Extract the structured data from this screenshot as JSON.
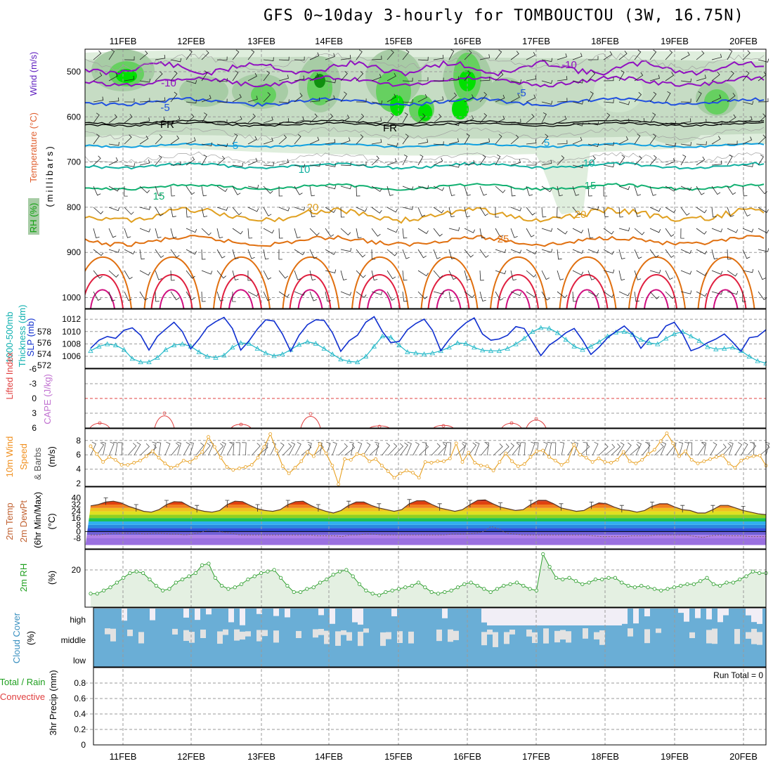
{
  "title": "GFS 0~10day 3-hourly for TOMBOUCTOU (3W, 16.75N)",
  "dates": [
    "11FEB",
    "12FEB",
    "13FEB",
    "14FEB",
    "15FEB",
    "16FEB",
    "17FEB",
    "18FEB",
    "19FEB",
    "20FEB"
  ],
  "colors": {
    "rh_light": "#dfeedd",
    "rh_mid": "#a7cca5",
    "rh_green": "#66d060",
    "rh_bright": "#00e000",
    "wind_purple": "#9010c0",
    "temp_blue": "#2050e0",
    "temp_cyan": "#10a0e0",
    "temp_teal": "#10b0a0",
    "temp_green": "#10b070",
    "temp_orange": "#e0a020",
    "temp_dark_orange": "#e07010",
    "temp_red": "#e02040",
    "slp_blue": "#1030d0",
    "thick_cyan": "#20b8c8",
    "wind10": "#e8a020",
    "rh2m": "#30a030",
    "cloud": "#6aaed6"
  },
  "panels": {
    "upper": {
      "ylabel_parts": [
        "RH (%)",
        "Temperature (°C)",
        "Wind (m/s)",
        "(millibars)"
      ],
      "yticks": [
        "500",
        "600",
        "700",
        "800",
        "900",
        "1000"
      ],
      "contour_labels": [
        {
          "text": "-10",
          "series": "wind_purple"
        },
        {
          "text": "-10",
          "series": "wind_purple"
        },
        {
          "text": "-5",
          "series": "temp_blue"
        },
        {
          "text": "-5",
          "series": "temp_blue"
        },
        {
          "text": "FR",
          "series": "black"
        },
        {
          "text": "FR",
          "series": "black"
        },
        {
          "text": "5",
          "series": "temp_cyan"
        },
        {
          "text": "5",
          "series": "temp_cyan"
        },
        {
          "text": "10",
          "series": "temp_teal"
        },
        {
          "text": "10",
          "series": "temp_teal"
        },
        {
          "text": "15",
          "series": "temp_green"
        },
        {
          "text": "15",
          "series": "temp_green"
        },
        {
          "text": "20",
          "series": "temp_orange"
        },
        {
          "text": "20",
          "series": "temp_orange"
        },
        {
          "text": "25",
          "series": "temp_dark_orange"
        }
      ]
    },
    "slp": {
      "ylabel_left": "Thickness (dm)",
      "ylabel_left2": "1000-500mb",
      "ylabel_right": "SLP (mb)",
      "thickness_ticks": [
        "572",
        "574",
        "576",
        "578"
      ],
      "slp_ticks": [
        "1006",
        "1008",
        "1010",
        "1012"
      ]
    },
    "cape": {
      "ylabel_a": "Lifted Index",
      "ylabel_b": "CAPE (J/kg)",
      "yticks": [
        "-6",
        "-3",
        "0",
        "3",
        "6"
      ]
    },
    "wind10": {
      "ylabel_a": "10m Wind",
      "ylabel_b": "Speed",
      "ylabel_c": "& Barbs",
      "ylabel_d": "(m/s)",
      "yticks": [
        "2",
        "4",
        "6",
        "8"
      ]
    },
    "temp2m": {
      "ylabel_a": "2m Temp",
      "ylabel_b": "2m DewPt",
      "ylabel_c": "(6hr Min/Max)",
      "ylabel_d": "(°C)",
      "yticks": [
        "-8",
        "0",
        "8",
        "16",
        "24",
        "32",
        "40"
      ]
    },
    "rh2m": {
      "ylabel_a": "2m RH",
      "ylabel_b": "(%)",
      "yticks": [
        "20"
      ]
    },
    "cloud": {
      "ylabel_a": "Cloud Cover",
      "ylabel_b": "(%)",
      "levels": [
        "high",
        "middle",
        "low"
      ]
    },
    "precip": {
      "ylabel_a": "Total / Rain",
      "ylabel_b": "Convective",
      "ylabel_c": "3hr Precip (mm)",
      "yticks": [
        "0",
        "0.2",
        "0.4",
        "0.6",
        "0.8"
      ],
      "run_total": "Run Total = 0"
    }
  },
  "chart_data": [
    {
      "type": "line",
      "title": "GFS 0~10day 3-hourly for TOMBOUCTOU (3W, 16.75N)",
      "panel": "SLP and 1000-500mb thickness",
      "series": [
        {
          "name": "SLP (mb)",
          "values": [
            1007.3,
            1008.6,
            1009.2,
            1008.9,
            1010.2,
            1010.6,
            1009.4,
            1007.0,
            1009.2,
            1010.4,
            1011.5,
            1010.0,
            1007.2,
            1008.8,
            1010.7,
            1011.6,
            1012.3,
            1010.5,
            1007.0,
            1008.5,
            1010.4,
            1011.9,
            1011.7,
            1009.6,
            1006.8,
            1009.4,
            1011.1,
            1011.9,
            1011.8,
            1009.8,
            1006.8,
            1008.5,
            1009.4,
            1011.5,
            1012.4,
            1010.0,
            1008.2,
            1008.4,
            1010.3,
            1011.3,
            1012.0,
            1010.2,
            1006.9,
            1008.7,
            1010.2,
            1011.4,
            1012.2,
            1009.6,
            1008.6,
            1008.8,
            1009.4,
            1010.8,
            1010.5,
            1008.3,
            1006.1,
            1007.8,
            1008.7,
            1009.8,
            1010.5,
            1008.6,
            1006.3,
            1007.5,
            1009.0,
            1010.0,
            1010.9,
            1009.6,
            1007.3,
            1008.9,
            1009.1,
            1010.9,
            1011.5,
            1009.6,
            1006.9,
            1007.4,
            1008.2,
            1008.8,
            1009.6,
            1008.3,
            1006.8,
            1009.0,
            1009.2,
            1010.3
          ]
        },
        {
          "name": "Thickness (dm)",
          "values": [
            574.6,
            575.4,
            575.8,
            575.6,
            574.8,
            573.2,
            572.6,
            572.6,
            573.4,
            574.8,
            575.6,
            575.8,
            575.4,
            574.4,
            573.6,
            573.4,
            573.8,
            575.2,
            576.0,
            575.9,
            575.0,
            574.2,
            573.7,
            574.0,
            574.8,
            575.7,
            576.2,
            575.9,
            575.0,
            574.0,
            573.1,
            572.7,
            572.6,
            573.6,
            575.4,
            577.2,
            577.0,
            575.6,
            574.4,
            574.2,
            574.0,
            574.2,
            574.6,
            575.2,
            576.0,
            575.9,
            575.2,
            574.7,
            574.6,
            574.6,
            575.0,
            575.8,
            576.8,
            578.0,
            578.7,
            578.6,
            577.8,
            576.6,
            575.4,
            574.8,
            575.4,
            576.2,
            577.2,
            577.9,
            578.0,
            577.5,
            576.6,
            576.0,
            575.8,
            576.8,
            577.6,
            578.0,
            577.2,
            576.4,
            575.3,
            574.9,
            575.0,
            575.2,
            574.6,
            573.6,
            572.8,
            572.4
          ]
        }
      ]
    },
    {
      "type": "line",
      "panel": "10m Wind Speed",
      "series": [
        {
          "name": "10m Wind Speed (m/s)",
          "values": [
            7.2,
            6.1,
            5.0,
            5.7,
            5.3,
            4.6,
            4.6,
            4.9,
            5.2,
            5.8,
            6.5,
            5.6,
            4.8,
            4.2,
            4.5,
            5.2,
            5.0,
            5.6,
            6.4,
            8.5,
            7.1,
            5.6,
            4.3,
            3.9,
            4.1,
            4.3,
            4.6,
            5.6,
            7.1,
            8.9,
            6.6,
            4.4,
            3.4,
            4.2,
            5.1,
            6.4,
            5.8,
            7.5,
            6.2,
            4.5,
            1.9,
            5.4,
            5.3,
            6.1,
            6.0,
            5.1,
            5.4,
            4.5,
            3.7,
            2.8,
            3.4,
            3.8,
            3.5,
            2.8,
            5.0,
            4.9,
            5.1,
            5.1,
            5.5,
            7.6,
            5.0,
            6.3,
            4.9,
            4.5,
            4.4,
            3.8,
            5.0,
            6.2,
            5.1,
            4.4,
            4.7,
            5.7,
            6.5,
            6.6,
            5.7,
            5.2,
            4.6,
            5.1,
            7.4,
            6.0,
            5.6,
            5.0,
            5.5,
            5.0,
            4.9,
            5.3,
            6.4,
            5.1,
            4.8,
            5.3,
            6.1,
            6.7,
            7.9,
            9.0,
            7.6,
            5.8,
            6.5,
            5.3,
            4.8,
            5.1,
            5.4,
            5.7,
            5.9,
            4.8,
            4.2,
            5.2,
            5.6,
            5.8,
            5.9,
            4.5
          ]
        }
      ]
    },
    {
      "type": "area",
      "panel": "2m Temp / DewPt",
      "series": [
        {
          "name": "2m Temp (°C)",
          "values": [
            30.5,
            32,
            35,
            36,
            34,
            30,
            27,
            24,
            23,
            26,
            32,
            35.5,
            35,
            30,
            26,
            24,
            23,
            25,
            32,
            36,
            35.5,
            31,
            27,
            25,
            24,
            26,
            32,
            35.5,
            36,
            31,
            27,
            24,
            22,
            25,
            31,
            35,
            35,
            31,
            28,
            26,
            24,
            26,
            33,
            36.5,
            36.5,
            32,
            28,
            26,
            24,
            26,
            32,
            37,
            37.5,
            33,
            29,
            27,
            25,
            26,
            32,
            37,
            37,
            33,
            28,
            26,
            24,
            25,
            30,
            34,
            33,
            29,
            26,
            25,
            23,
            25,
            30,
            33,
            33,
            29,
            26,
            25,
            22,
            22,
            26,
            31,
            31,
            28,
            25,
            23,
            21,
            20
          ]
        },
        {
          "name": "2m DewPt (°C)",
          "values": [
            -4,
            -4,
            -3,
            -2,
            -2,
            -2,
            -2,
            -3,
            -2,
            -2,
            -3,
            -3,
            -4,
            -3,
            -1,
            2,
            1,
            -1,
            -2,
            -4,
            -4,
            -4,
            -4,
            -4,
            -4,
            -4,
            -4,
            -4,
            -4,
            -5,
            -5,
            -5,
            -6,
            -4,
            -4,
            -3,
            -3,
            -4,
            -4,
            -4,
            -4,
            -4,
            -4,
            -4,
            -4,
            -4,
            -3,
            -3,
            -3,
            -2,
            0,
            6,
            3,
            -2,
            -3,
            -4,
            -4,
            -4,
            -4,
            -4,
            -4,
            -4,
            -4,
            -4,
            -5,
            -6,
            -6,
            -6,
            -6,
            -5,
            -5,
            -5,
            -4,
            -4,
            -4,
            -4,
            -4,
            -6,
            -7,
            -5,
            -4,
            -5,
            -5,
            -5,
            -6,
            -6,
            -6
          ]
        }
      ]
    },
    {
      "type": "line",
      "panel": "2m RH",
      "series": [
        {
          "name": "2m RH (%)",
          "values": [
            5,
            5,
            7,
            9,
            12,
            15,
            18,
            19,
            18,
            14,
            10,
            7,
            8,
            12,
            14,
            16,
            18,
            23,
            24,
            15,
            10,
            8,
            9,
            11,
            14,
            16,
            18,
            19,
            20,
            15,
            10,
            6,
            6,
            8,
            9,
            12,
            14,
            17,
            19,
            20,
            16,
            11,
            7,
            5,
            4,
            6,
            7,
            8,
            9,
            10,
            12,
            9,
            6,
            5,
            6,
            7,
            9,
            11,
            12,
            10,
            8,
            6,
            8,
            10,
            11,
            12,
            10,
            8,
            7,
            30,
            22,
            15,
            14,
            15,
            13,
            11,
            12,
            14,
            14,
            15,
            15,
            12,
            10,
            9,
            10,
            9,
            8,
            7,
            8,
            9,
            10,
            11,
            11,
            13,
            15,
            11,
            10,
            12,
            12,
            14,
            16,
            19,
            18,
            18
          ]
        }
      ]
    },
    {
      "type": "bar",
      "panel": "3hr Precip",
      "series": [
        {
          "name": "Total / Rain (mm)",
          "values": [
            0
          ]
        },
        {
          "name": "Convective (mm)",
          "values": [
            0
          ]
        }
      ],
      "ylim": [
        0,
        1
      ]
    }
  ]
}
